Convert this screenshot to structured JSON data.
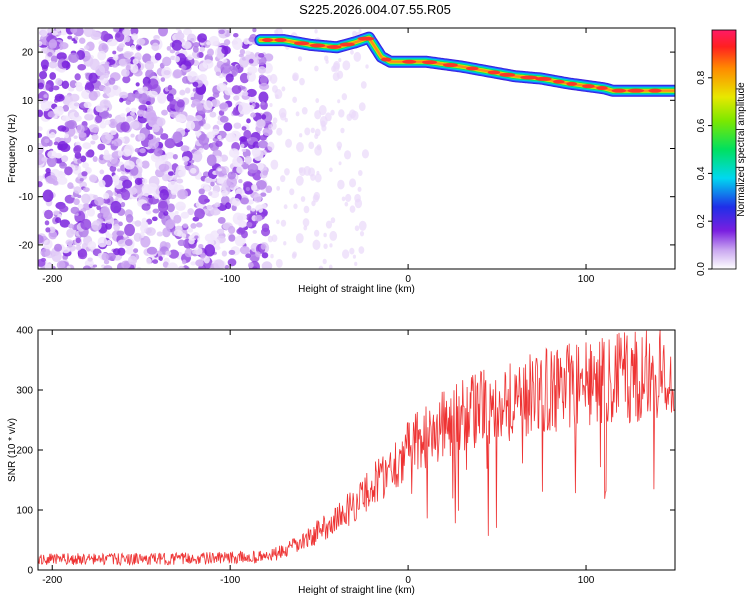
{
  "title": "S225.2026.004.07.55.R05",
  "chart_data": [
    {
      "type": "heatmap",
      "xlabel": "Height of straight line (km)",
      "ylabel": "Frequency (Hz)",
      "xlim": [
        -208,
        150
      ],
      "ylim": [
        -25,
        25
      ],
      "xticks": [
        -200,
        -100,
        0,
        100
      ],
      "yticks": [
        -20,
        -10,
        0,
        10,
        20
      ],
      "colorbar": {
        "label": "Normalized spectral amplitude",
        "range": [
          0.0,
          1.0
        ],
        "ticks": [
          0.0,
          0.2,
          0.4,
          0.6,
          0.8
        ]
      },
      "ridge": {
        "x": [
          -83,
          -70,
          -55,
          -40,
          -30,
          -22,
          -15,
          -10,
          0,
          10,
          20,
          30,
          45,
          60,
          75,
          90,
          100,
          110,
          115,
          130,
          150
        ],
        "y": [
          22.5,
          22.5,
          21.5,
          21,
          22,
          23,
          19,
          18,
          18,
          18,
          17.5,
          17,
          16,
          15,
          14.5,
          13.5,
          13,
          12.5,
          12,
          12,
          12
        ]
      }
    },
    {
      "type": "line",
      "xlabel": "Height of straight line (km)",
      "ylabel": "SNR (10 * v/v)",
      "xlim": [
        -208,
        150
      ],
      "ylim": [
        0,
        400
      ],
      "xticks": [
        -200,
        -100,
        0,
        100
      ],
      "yticks": [
        0,
        100,
        200,
        300,
        400
      ],
      "color": "#ee3333",
      "trend": {
        "x": [
          -208,
          -150,
          -100,
          -80,
          -70,
          -60,
          -50,
          -40,
          -30,
          -20,
          -10,
          0,
          10,
          20,
          30,
          40,
          50,
          60,
          70,
          80,
          90,
          100,
          110,
          120,
          130,
          140,
          150
        ],
        "y": [
          18,
          18,
          20,
          22,
          30,
          45,
          65,
          85,
          110,
          140,
          170,
          200,
          225,
          240,
          258,
          270,
          278,
          285,
          292,
          300,
          305,
          310,
          315,
          320,
          322,
          325,
          330
        ]
      }
    }
  ]
}
